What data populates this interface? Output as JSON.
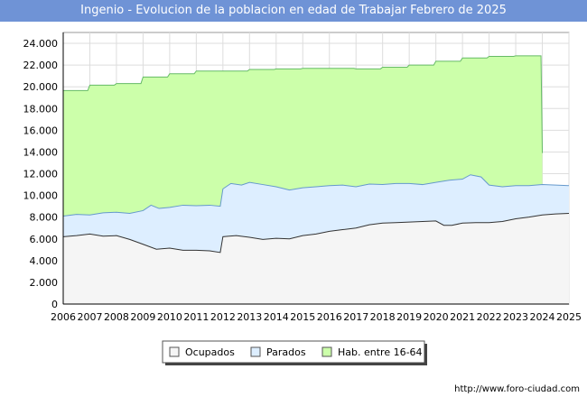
{
  "chart_data": {
    "type": "area",
    "title": "Ingenio - Evolucion de la poblacion en edad de Trabajar Febrero de 2025",
    "xlabel": "",
    "ylabel": "",
    "x_ticks": [
      "2006",
      "2007",
      "2008",
      "2009",
      "2010",
      "2011",
      "2012",
      "2013",
      "2014",
      "2015",
      "2016",
      "2017",
      "2018",
      "2019",
      "2020",
      "2021",
      "2022",
      "2023",
      "2024",
      "2025"
    ],
    "y_ticks": [
      "0",
      "2.000",
      "4.000",
      "6.000",
      "8.000",
      "10.000",
      "12.000",
      "14.000",
      "16.000",
      "18.000",
      "20.000",
      "22.000",
      "24.000"
    ],
    "xlim": [
      2006,
      2025
    ],
    "ylim": [
      0,
      25000
    ],
    "grid": true,
    "legend_position": "bottom-center",
    "series": [
      {
        "name": "Hab. entre 16-64",
        "color": "#ccffaa",
        "line_color": "#66bb66",
        "points": [
          [
            2006,
            19650
          ],
          [
            2006.92,
            19650
          ],
          [
            2007,
            20150
          ],
          [
            2007.92,
            20150
          ],
          [
            2008,
            20300
          ],
          [
            2008.92,
            20300
          ],
          [
            2009,
            20900
          ],
          [
            2009.92,
            20900
          ],
          [
            2010,
            21200
          ],
          [
            2010.92,
            21200
          ],
          [
            2011,
            21450
          ],
          [
            2011.92,
            21450
          ],
          [
            2012,
            21450
          ],
          [
            2012.92,
            21450
          ],
          [
            2013,
            21600
          ],
          [
            2013.92,
            21600
          ],
          [
            2014,
            21650
          ],
          [
            2014.92,
            21650
          ],
          [
            2015,
            21700
          ],
          [
            2015.92,
            21700
          ],
          [
            2016,
            21700
          ],
          [
            2016.92,
            21700
          ],
          [
            2017,
            21650
          ],
          [
            2017.92,
            21650
          ],
          [
            2018,
            21800
          ],
          [
            2018.92,
            21800
          ],
          [
            2019,
            22000
          ],
          [
            2019.92,
            22000
          ],
          [
            2020,
            22350
          ],
          [
            2020.92,
            22350
          ],
          [
            2021,
            22650
          ],
          [
            2021.92,
            22650
          ],
          [
            2022,
            22800
          ],
          [
            2022.92,
            22800
          ],
          [
            2023,
            22850
          ],
          [
            2023.95,
            22850
          ],
          [
            2024,
            13900
          ]
        ]
      },
      {
        "name": "Parados",
        "color": "#ddeeff",
        "line_color": "#6699cc",
        "points": [
          [
            2006,
            8100
          ],
          [
            2006.5,
            8250
          ],
          [
            2007,
            8200
          ],
          [
            2007.5,
            8400
          ],
          [
            2008,
            8450
          ],
          [
            2008.5,
            8350
          ],
          [
            2009,
            8600
          ],
          [
            2009.3,
            9100
          ],
          [
            2009.6,
            8800
          ],
          [
            2010,
            8900
          ],
          [
            2010.5,
            9100
          ],
          [
            2011,
            9050
          ],
          [
            2011.5,
            9100
          ],
          [
            2011.9,
            9000
          ],
          [
            2012,
            10600
          ],
          [
            2012.3,
            11100
          ],
          [
            2012.7,
            10950
          ],
          [
            2013,
            11200
          ],
          [
            2013.5,
            11000
          ],
          [
            2014,
            10800
          ],
          [
            2014.5,
            10500
          ],
          [
            2015,
            10700
          ],
          [
            2015.5,
            10800
          ],
          [
            2016,
            10900
          ],
          [
            2016.5,
            10950
          ],
          [
            2017,
            10800
          ],
          [
            2017.5,
            11050
          ],
          [
            2018,
            11000
          ],
          [
            2018.5,
            11100
          ],
          [
            2019,
            11100
          ],
          [
            2019.5,
            11000
          ],
          [
            2020,
            11200
          ],
          [
            2020.5,
            11400
          ],
          [
            2021,
            11500
          ],
          [
            2021.3,
            11900
          ],
          [
            2021.7,
            11700
          ],
          [
            2022,
            10950
          ],
          [
            2022.5,
            10800
          ],
          [
            2023,
            10900
          ],
          [
            2023.5,
            10900
          ],
          [
            2024,
            11000
          ],
          [
            2024.5,
            10950
          ],
          [
            2025,
            10900
          ]
        ]
      },
      {
        "name": "Ocupados",
        "color": "#f5f5f5",
        "line_color": "#333333",
        "points": [
          [
            2006,
            6200
          ],
          [
            2006.5,
            6300
          ],
          [
            2007,
            6450
          ],
          [
            2007.5,
            6250
          ],
          [
            2008,
            6300
          ],
          [
            2008.5,
            5950
          ],
          [
            2009,
            5500
          ],
          [
            2009.5,
            5050
          ],
          [
            2010,
            5150
          ],
          [
            2010.5,
            4950
          ],
          [
            2011,
            4950
          ],
          [
            2011.5,
            4900
          ],
          [
            2011.9,
            4750
          ],
          [
            2012,
            6200
          ],
          [
            2012.5,
            6300
          ],
          [
            2013,
            6150
          ],
          [
            2013.5,
            5950
          ],
          [
            2014,
            6050
          ],
          [
            2014.5,
            6000
          ],
          [
            2015,
            6300
          ],
          [
            2015.5,
            6450
          ],
          [
            2016,
            6700
          ],
          [
            2016.5,
            6850
          ],
          [
            2017,
            7000
          ],
          [
            2017.5,
            7300
          ],
          [
            2018,
            7450
          ],
          [
            2018.5,
            7500
          ],
          [
            2019,
            7550
          ],
          [
            2019.5,
            7600
          ],
          [
            2020,
            7650
          ],
          [
            2020.3,
            7250
          ],
          [
            2020.6,
            7250
          ],
          [
            2021,
            7450
          ],
          [
            2021.5,
            7500
          ],
          [
            2022,
            7500
          ],
          [
            2022.5,
            7600
          ],
          [
            2023,
            7850
          ],
          [
            2023.5,
            8000
          ],
          [
            2024,
            8200
          ],
          [
            2024.5,
            8300
          ],
          [
            2025,
            8350
          ]
        ]
      }
    ]
  },
  "legend": {
    "items": [
      {
        "label": "Ocupados",
        "color": "#f5f5f5"
      },
      {
        "label": "Parados",
        "color": "#ddeeff"
      },
      {
        "label": "Hab. entre 16-64",
        "color": "#ccffaa"
      }
    ]
  },
  "footer": {
    "url": "http://www.foro-ciudad.com"
  },
  "colors": {
    "title_bg": "#6f93d6",
    "plot_bg": "#ffffff",
    "grid": "#dddddd"
  }
}
